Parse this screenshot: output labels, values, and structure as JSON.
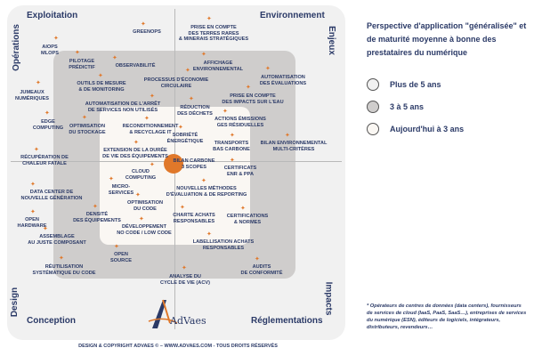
{
  "quadrants": {
    "top_left": "Exploitation",
    "top_right": "Environnement",
    "bottom_left": "Conception",
    "bottom_right": "Réglementations"
  },
  "side_labels": {
    "left_top": "Opérations",
    "left_bottom": "Design",
    "right_top": "Enjeux",
    "right_bottom": "Impacts"
  },
  "items": [
    "GREENOPS",
    "PRISE EN COMPTE\nDES TERRES RARES\n& MINERAIS STRATÉGIQUES",
    "AIOPS\nMLOPS",
    "PILOTAGE\nPRÉDICTIF",
    "OBSERVABILITÉ",
    "AFFICHAGE\nENVIRONNEMENTAL",
    "AUTOMATISATION\nDES ÉVALUATIONS",
    "OUTILS DE MESURE\n& DE MONITORING",
    "PROCESSUS D'ÉCONOMIE\nCIRCULAIRE",
    "JUMEAUX\nNUMÉRIQUES",
    "PRISE EN COMPTE\nDES IMPACTS SUR L'EAU",
    "AUTOMATISATION DE L'ARRÊT\nDE SERVICES NON UTILISÉS",
    "RÉDUCTION\nDES DÉCHETS",
    "ACTIONS ÉMISSIONS\nGES RÉSIDUELLES",
    "EDGE\nCOMPUTING",
    "OPTIMISATION\nDU STOCKAGE",
    "RECONDITIONNEMENT\n& RECYCLAGE IT",
    "SOBRIÉTÉ\nÉNERGÉTIQUE",
    "TRANSPORTS\nBAS CARBONE",
    "BILAN ENVIRONNEMENTAL\nMULTI-CRITÈRES",
    "EXTENSION DE LA DURÉE\nDE VIE DES ÉQUIPEMENTS",
    "RÉCUPÉRATION DE\nCHALEUR FATALE",
    "BILAN CARBONE\n3 SCOPES",
    "CERTIFICATS\nENR & PPA",
    "CLOUD\nCOMPUTING",
    "DATA CENTER DE\nNOUVELLE GÉNÉRATION",
    "MICRO-\nSERVICES",
    "NOUVELLES MÉTHODES\nD'ÉVALUATION & DE REPORTING",
    "OPTIMISATION\nDU CODE",
    "DENSITÉ\nDES ÉQUIPEMENTS",
    "CHARTE ACHATS\nRESPONSABLES",
    "CERTIFICATIONS\n& NORMES",
    "OPEN\nHARDWARE",
    "DÉVELOPPEMENT\nNO CODE / LOW CODE",
    "ASSEMBLAGE\nAU JUSTE COMPOSANT",
    "LABELLISATION ACHATS\nRESPONSABLES",
    "OPEN\nSOURCE",
    "RÉUTILISATION\nSYSTÉMATIQUE DU CODE",
    "AUDITS\nDE CONFORMITÉ",
    "ANALYSE DU\nCYCLE DE VIE (ACV)"
  ],
  "logo_text": "AdVaes",
  "footer": "DESIGN & COPYRIGHT ADVAES © – WWW.ADVAES.COM - TOUS DROITS RÉSERVÉS",
  "legend": {
    "title": "Perspective d'application \"généralisée\" et de maturité moyenne à bonne des prestataires du numérique",
    "entries": [
      {
        "label": "Plus de 5 ans",
        "color": "#f1f1f1"
      },
      {
        "label": "3 à 5 ans",
        "color": "#cfcdcc"
      },
      {
        "label": "Aujourd'hui à 3 ans",
        "color": "#faf7f3"
      }
    ]
  },
  "note": "* Opérateurs de centres de données (data centers), fournisseurs de services de cloud (IaaS, PaaS, SaaS…), entreprises de services du numérique (ESN), éditeurs de logiciels, intégrateurs, distributeurs, revendeurs…",
  "colors": {
    "accent": "#e0782a",
    "text": "#2b3a67"
  }
}
